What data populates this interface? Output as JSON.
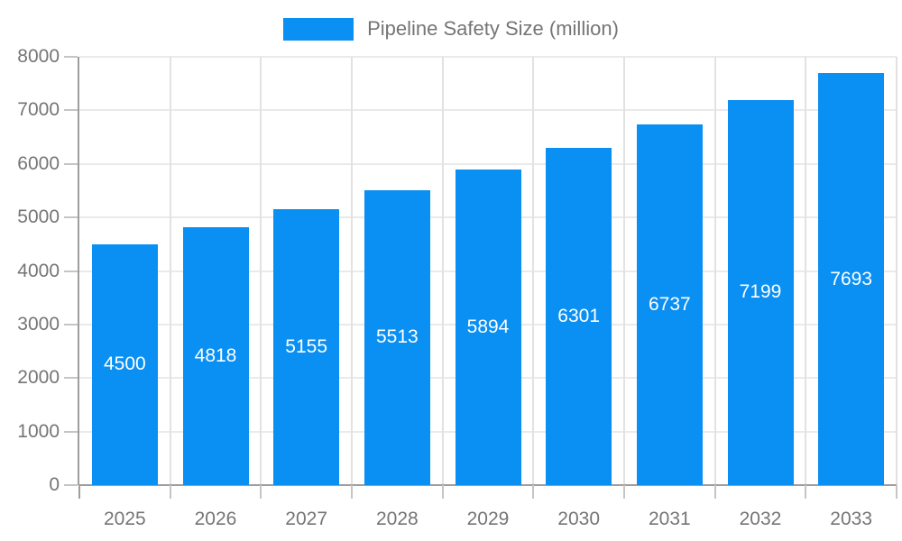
{
  "chart_data": {
    "type": "bar",
    "title": "Pipeline Safety Size (million)",
    "categories": [
      "2025",
      "2026",
      "2027",
      "2028",
      "2029",
      "2030",
      "2031",
      "2032",
      "2033"
    ],
    "series": [
      {
        "name": "Pipeline Safety Size (million)",
        "values": [
          4500,
          4818,
          5155,
          5513,
          5894,
          6301,
          6737,
          7199,
          7693
        ]
      }
    ],
    "xlabel": "",
    "ylabel": "",
    "ylim": [
      0,
      8000
    ],
    "yticks": [
      0,
      1000,
      2000,
      3000,
      4000,
      5000,
      6000,
      7000,
      8000
    ],
    "grid": true,
    "legend_position": "top-center",
    "value_label_position": "inside-center"
  },
  "colors": {
    "bar": "#0a8ff2",
    "grid_h": "#eaeaea",
    "grid_v": "#e2e2e2",
    "axis": "#9e9e9e",
    "tick": "#c5c5c5",
    "axis_text": "#757575",
    "legend_text": "#757575",
    "value_text": "#ffffff",
    "background": "#ffffff"
  }
}
